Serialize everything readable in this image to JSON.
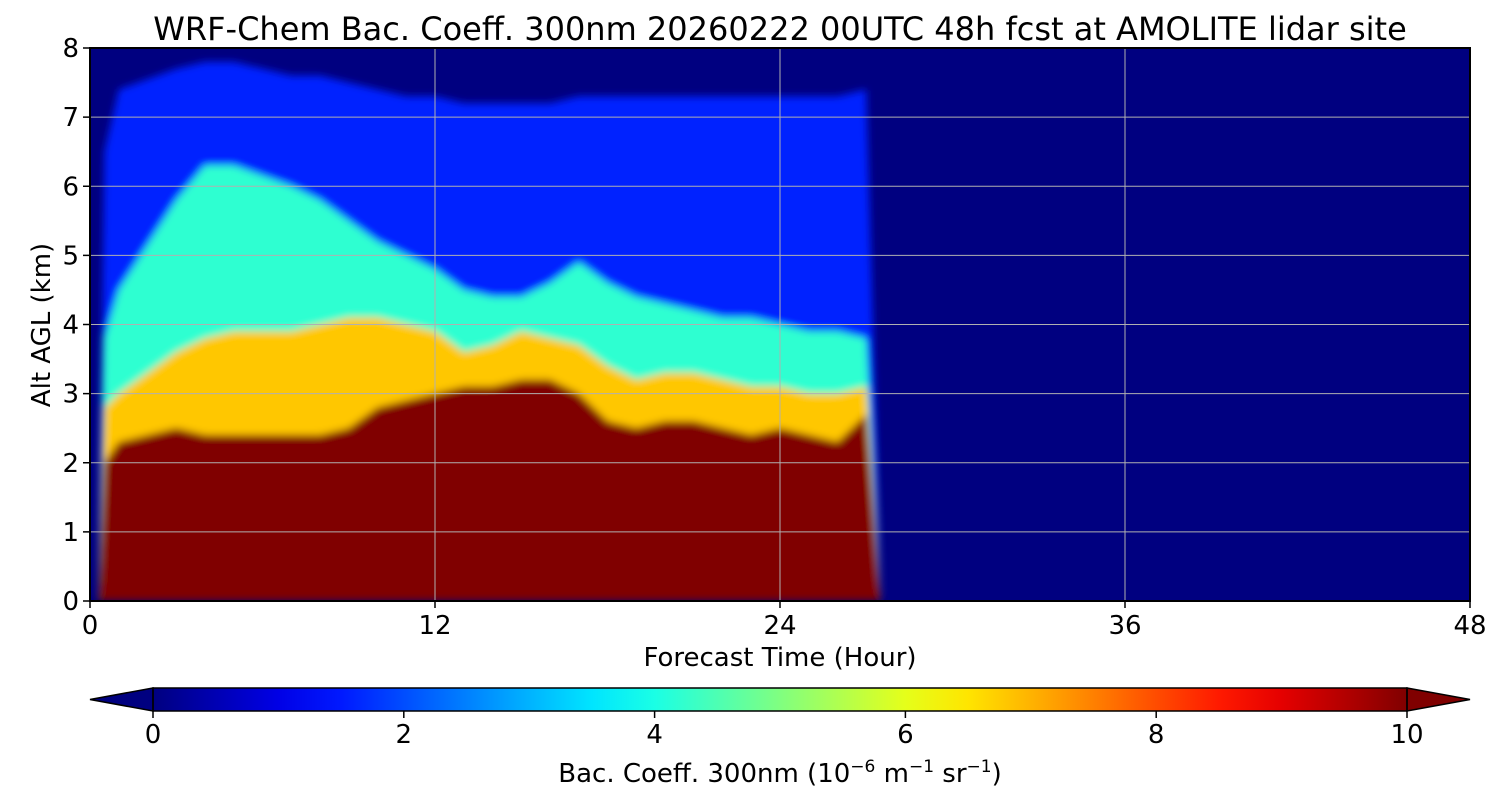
{
  "chart_data": {
    "type": "heatmap",
    "title": "WRF-Chem Bac. Coeff. 300nm  20260222 00UTC 48h fcst at AMOLITE lidar site",
    "xlabel": "Forecast Time (Hour)",
    "ylabel": "Alt AGL (km)",
    "xlim": [
      0,
      48
    ],
    "ylim": [
      0,
      8
    ],
    "xticks": [
      0,
      12,
      24,
      36,
      48
    ],
    "yticks": [
      0,
      1,
      2,
      3,
      4,
      5,
      6,
      7,
      8
    ],
    "grid": true,
    "colorbar": {
      "label_main": "Bac. Coeff. 300nm  (10",
      "label_exp1": "−6",
      "label_mid": " m",
      "label_exp2": "−1",
      "label_mid2": " sr",
      "label_exp3": "−1",
      "label_end": ")",
      "range": [
        0,
        10
      ],
      "ticks": [
        0,
        2,
        4,
        6,
        8,
        10
      ],
      "colormap": "jet",
      "extend": "both",
      "over_color": "#800000",
      "under_color": "#000080"
    },
    "field_summary": {
      "data_end_hour": 27.5,
      "background_value": 0,
      "time_hours": [
        0.3,
        0.5,
        1,
        3,
        4,
        5,
        7,
        8,
        9,
        10,
        11,
        12,
        13,
        14,
        15,
        16,
        17,
        18,
        19,
        20,
        21,
        22,
        23,
        24,
        25,
        26,
        27,
        27.5
      ],
      "saturated_layer_top_km": [
        0,
        2.0,
        2.3,
        2.5,
        2.4,
        2.4,
        2.4,
        2.4,
        2.5,
        2.8,
        2.9,
        3.0,
        3.1,
        3.1,
        3.2,
        3.2,
        3.0,
        2.6,
        2.5,
        2.6,
        2.6,
        2.5,
        2.4,
        2.5,
        2.4,
        2.3,
        2.7,
        0
      ],
      "yellow_layer_top_km": [
        0,
        2.8,
        3.0,
        3.6,
        3.8,
        3.9,
        3.9,
        4.0,
        4.1,
        4.1,
        4.0,
        3.9,
        3.6,
        3.7,
        3.9,
        3.8,
        3.7,
        3.4,
        3.2,
        3.3,
        3.3,
        3.2,
        3.1,
        3.1,
        3.0,
        3.0,
        3.1,
        0
      ],
      "cyan_layer_top_km": [
        0,
        3.8,
        4.5,
        5.8,
        6.3,
        6.3,
        6.0,
        5.8,
        5.5,
        5.2,
        5.0,
        4.8,
        4.5,
        4.4,
        4.4,
        4.6,
        4.9,
        4.6,
        4.4,
        4.3,
        4.2,
        4.1,
        4.1,
        4.0,
        3.9,
        3.9,
        3.8,
        0
      ],
      "blue_layer_top_km": [
        0,
        6.5,
        7.4,
        7.7,
        7.8,
        7.8,
        7.6,
        7.6,
        7.5,
        7.4,
        7.3,
        7.3,
        7.2,
        7.2,
        7.2,
        7.2,
        7.3,
        7.3,
        7.3,
        7.3,
        7.3,
        7.3,
        7.3,
        7.3,
        7.3,
        7.3,
        7.4,
        0
      ]
    }
  }
}
